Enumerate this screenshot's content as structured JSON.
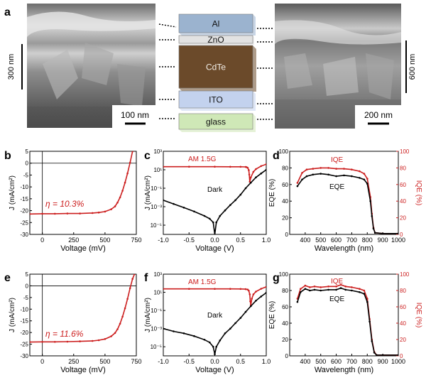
{
  "panel_a": {
    "letter": "a",
    "left_image": {
      "scale_side": "300 nm",
      "scale_bar": "100 nm"
    },
    "right_image": {
      "scale_side": "600 nm",
      "scale_bar": "200 nm"
    },
    "layers": [
      {
        "name": "Al",
        "color": "#9bb3cf"
      },
      {
        "name": "ZnO",
        "color": "#e2e2e2"
      },
      {
        "name": "CdTe",
        "color": "#6b4a2a"
      },
      {
        "name": "ITO",
        "color": "#c3d2ee"
      },
      {
        "name": "glass",
        "color": "#cfe8b7"
      }
    ]
  },
  "chart_data": [
    {
      "id": "b",
      "type": "line",
      "letter": "b",
      "xlabel": "Voltage (mV)",
      "ylabel": "J (mA/cm²)",
      "xlim": [
        -100,
        750
      ],
      "ylim": [
        -30,
        5
      ],
      "xticks": [
        0,
        250,
        500,
        750
      ],
      "xtick_labels": [
        "0",
        "250",
        "500",
        "750"
      ],
      "yticks": [
        5,
        0,
        -5,
        -10,
        -15,
        -20,
        -25,
        -30
      ],
      "ytick_labels": [
        "5",
        "0",
        "-5",
        "-10",
        "-15",
        "-20",
        "-25",
        "-30"
      ],
      "annotation": "η = 10.3%",
      "series": [
        {
          "color": "#cc1f1f",
          "x": [
            -100,
            0,
            100,
            200,
            300,
            400,
            450,
            500,
            550,
            580,
            600,
            620,
            640,
            660,
            680,
            700,
            720
          ],
          "y": [
            -21.4,
            -21.3,
            -21.3,
            -21.2,
            -21.2,
            -21.0,
            -20.8,
            -20.4,
            -19.4,
            -18.2,
            -16.6,
            -14.4,
            -11.6,
            -8.2,
            -4.3,
            0.2,
            5
          ]
        }
      ]
    },
    {
      "id": "c",
      "type": "line",
      "letter": "c",
      "log_y": true,
      "xlabel": "Voltage (V)",
      "ylabel": "J (mA/cm²)",
      "xlim": [
        -1.0,
        1.0
      ],
      "ylim_exp": [
        -6,
        3
      ],
      "xticks": [
        -1.0,
        -0.5,
        0.0,
        0.5,
        1.0
      ],
      "xtick_labels": [
        "-1.0",
        "-0.5",
        "0.0",
        "0.5",
        "1.0"
      ],
      "ytick_exps": [
        3,
        1,
        -1,
        -3,
        -5
      ],
      "ytick_labels": [
        "10³",
        "10¹",
        "10⁻¹",
        "10⁻³",
        "10⁻⁵"
      ],
      "legend": [
        "AM 1.5G",
        "Dark"
      ],
      "series": [
        {
          "name": "AM 1.5G",
          "color": "#cc1f1f",
          "x": [
            -1.0,
            -0.5,
            0.0,
            0.3,
            0.5,
            0.6,
            0.62,
            0.64,
            0.66,
            0.67,
            0.68,
            0.7,
            0.75,
            0.8,
            0.9,
            1.0
          ],
          "y": [
            21.4,
            21.4,
            21.3,
            21.2,
            21.0,
            20.2,
            19,
            16,
            9,
            3,
            0.5,
            1.5,
            6,
            12,
            25,
            40
          ]
        },
        {
          "name": "Dark",
          "color": "#000000",
          "x": [
            -1.0,
            -0.8,
            -0.6,
            -0.4,
            -0.2,
            -0.1,
            -0.03,
            0.0,
            0.03,
            0.1,
            0.2,
            0.3,
            0.4,
            0.5,
            0.6,
            0.7,
            0.8,
            0.9,
            1.0
          ],
          "y": [
            0.005,
            0.002,
            0.0008,
            0.0003,
            0.0001,
            5e-05,
            2e-05,
            1e-06,
            2e-05,
            0.0001,
            0.0004,
            0.0015,
            0.005,
            0.02,
            0.1,
            0.4,
            1.5,
            4,
            10
          ]
        }
      ]
    },
    {
      "id": "d",
      "type": "line",
      "letter": "d",
      "xlabel": "Wavelength (nm)",
      "ylabel": "EQE (%)",
      "ylabel_right": "IQE (%)",
      "xlim": [
        300,
        1000
      ],
      "ylim": [
        0,
        100
      ],
      "xticks": [
        400,
        500,
        600,
        700,
        800,
        900,
        1000
      ],
      "xtick_labels": [
        "400",
        "500",
        "600",
        "700",
        "800",
        "900",
        "1000"
      ],
      "yticks": [
        0,
        20,
        40,
        60,
        80,
        100
      ],
      "ytick_labels": [
        "0",
        "20",
        "40",
        "60",
        "80",
        "100"
      ],
      "legend": [
        "IQE",
        "EQE"
      ],
      "series": [
        {
          "name": "IQE",
          "color": "#cc1f1f",
          "x": [
            350,
            380,
            410,
            450,
            500,
            550,
            600,
            650,
            700,
            750,
            780,
            800,
            820,
            830,
            840,
            850,
            900,
            1000
          ],
          "y": [
            62,
            74,
            78,
            79,
            80,
            80,
            79,
            79,
            78,
            76,
            73,
            67,
            45,
            25,
            8,
            2,
            1,
            1
          ]
        },
        {
          "name": "EQE",
          "color": "#000000",
          "x": [
            350,
            380,
            410,
            450,
            500,
            550,
            600,
            650,
            700,
            750,
            780,
            800,
            820,
            830,
            840,
            850,
            900,
            1000
          ],
          "y": [
            58,
            66,
            70,
            72,
            73,
            72,
            70,
            71,
            70,
            68,
            66,
            61,
            40,
            22,
            7,
            2,
            1,
            1
          ]
        }
      ]
    },
    {
      "id": "e",
      "type": "line",
      "letter": "e",
      "xlabel": "Voltage (mV)",
      "ylabel": "J (mA/cm²)",
      "xlim": [
        -100,
        750
      ],
      "ylim": [
        -30,
        5
      ],
      "xticks": [
        0,
        250,
        500,
        750
      ],
      "xtick_labels": [
        "0",
        "250",
        "500",
        "750"
      ],
      "yticks": [
        5,
        0,
        -5,
        -10,
        -15,
        -20,
        -25,
        -30
      ],
      "ytick_labels": [
        "5",
        "0",
        "-5",
        "-10",
        "-15",
        "-20",
        "-25",
        "-30"
      ],
      "annotation": "η = 11.6%",
      "series": [
        {
          "color": "#cc1f1f",
          "x": [
            -100,
            0,
            100,
            200,
            300,
            400,
            450,
            500,
            550,
            580,
            600,
            620,
            640,
            660,
            680,
            700,
            720,
            735
          ],
          "y": [
            -24.1,
            -24.0,
            -24.0,
            -23.9,
            -23.8,
            -23.6,
            -23.3,
            -22.8,
            -21.6,
            -20.2,
            -18.6,
            -16.2,
            -13.2,
            -9.6,
            -5.6,
            -1.0,
            3.0,
            5
          ]
        }
      ]
    },
    {
      "id": "f",
      "type": "line",
      "letter": "f",
      "log_y": true,
      "xlabel": "Voltage (V)",
      "ylabel": "J (mA/cm²)",
      "xlim": [
        -1.0,
        1.0
      ],
      "ylim_exp": [
        -6,
        3
      ],
      "xticks": [
        -1.0,
        -0.5,
        0.0,
        0.5,
        1.0
      ],
      "xtick_labels": [
        "-1.0",
        "-0.5",
        "0.0",
        "0.5",
        "1.0"
      ],
      "ytick_exps": [
        3,
        1,
        -1,
        -3,
        -5
      ],
      "ytick_labels": [
        "10³",
        "10¹",
        "10⁻¹",
        "10⁻³",
        "10⁻⁵"
      ],
      "legend": [
        "AM 1.5G",
        "Dark"
      ],
      "series": [
        {
          "name": "AM 1.5G",
          "color": "#cc1f1f",
          "x": [
            -1.0,
            -0.5,
            0.0,
            0.3,
            0.5,
            0.6,
            0.64,
            0.66,
            0.68,
            0.69,
            0.7,
            0.72,
            0.75,
            0.8,
            0.9,
            1.0
          ],
          "y": [
            24.1,
            24.0,
            24.0,
            23.9,
            23.6,
            22.5,
            20,
            15,
            6,
            1,
            0.4,
            2,
            6,
            12,
            25,
            40
          ]
        },
        {
          "name": "Dark",
          "color": "#000000",
          "x": [
            -1.0,
            -0.8,
            -0.6,
            -0.4,
            -0.2,
            -0.1,
            -0.03,
            0.0,
            0.03,
            0.1,
            0.2,
            0.3,
            0.4,
            0.5,
            0.6,
            0.7,
            0.8,
            0.9,
            1.0
          ],
          "y": [
            0.001,
            0.0005,
            0.0003,
            0.00015,
            6e-05,
            3e-05,
            1e-05,
            1.5e-06,
            1e-05,
            5e-05,
            0.0003,
            0.001,
            0.004,
            0.015,
            0.07,
            0.3,
            1.2,
            3.5,
            9
          ]
        }
      ]
    },
    {
      "id": "g",
      "type": "line",
      "letter": "g",
      "xlabel": "Wavelength (nm)",
      "ylabel": "EQE (%)",
      "ylabel_right": "IQE (%)",
      "xlim": [
        300,
        1000
      ],
      "ylim": [
        0,
        100
      ],
      "xticks": [
        400,
        500,
        600,
        700,
        800,
        900,
        1000
      ],
      "xtick_labels": [
        "400",
        "500",
        "600",
        "700",
        "800",
        "900",
        "1000"
      ],
      "yticks": [
        0,
        20,
        40,
        60,
        80,
        100
      ],
      "ytick_labels": [
        "0",
        "20",
        "40",
        "60",
        "80",
        "100"
      ],
      "legend": [
        "IQE",
        "EQE"
      ],
      "series": [
        {
          "name": "IQE",
          "color": "#cc1f1f",
          "x": [
            350,
            370,
            400,
            430,
            460,
            500,
            550,
            600,
            630,
            660,
            700,
            750,
            780,
            800,
            815,
            830,
            845,
            860,
            900,
            1000
          ],
          "y": [
            70,
            82,
            86,
            84,
            85,
            84,
            85,
            85,
            87,
            85,
            84,
            82,
            80,
            70,
            45,
            20,
            5,
            1,
            1,
            1
          ]
        },
        {
          "name": "EQE",
          "color": "#000000",
          "x": [
            350,
            370,
            400,
            430,
            460,
            500,
            550,
            600,
            630,
            660,
            700,
            750,
            780,
            800,
            815,
            830,
            845,
            860,
            900,
            1000
          ],
          "y": [
            66,
            78,
            82,
            80,
            81,
            80,
            81,
            81,
            83,
            81,
            80,
            78,
            76,
            66,
            42,
            18,
            4,
            1,
            1,
            1
          ]
        }
      ]
    }
  ]
}
